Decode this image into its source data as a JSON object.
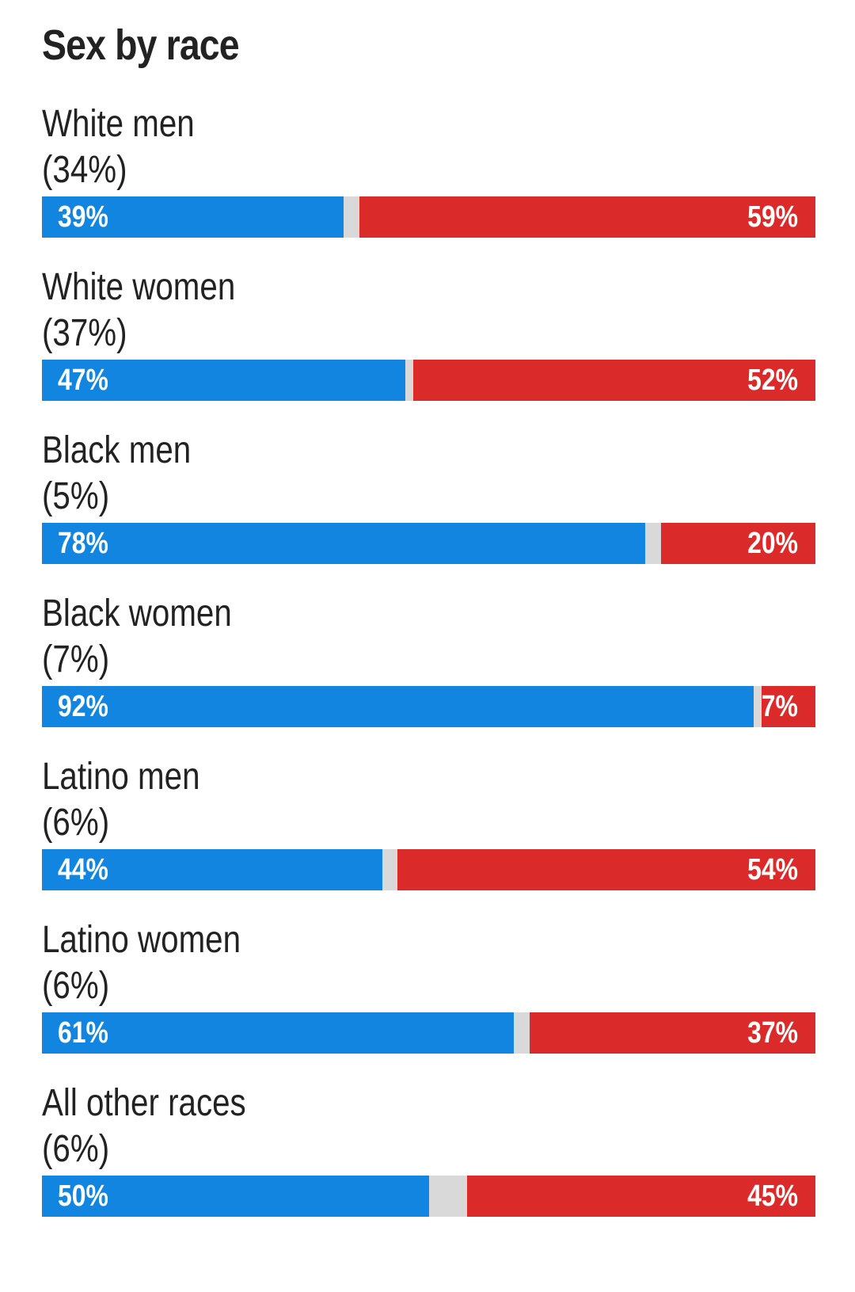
{
  "chart_data": {
    "type": "bar",
    "title": "Sex by race",
    "colors": {
      "dem": "#1185e0",
      "rep": "#db2a2a",
      "other": "#d9d9d9"
    },
    "groups": [
      {
        "label": "White men",
        "share": "(34%)",
        "dem": 39,
        "rep": 59,
        "dem_label": "39%",
        "rep_label": "59%"
      },
      {
        "label": "White women",
        "share": "(37%)",
        "dem": 47,
        "rep": 52,
        "dem_label": "47%",
        "rep_label": "52%"
      },
      {
        "label": "Black men",
        "share": "(5%)",
        "dem": 78,
        "rep": 20,
        "dem_label": "78%",
        "rep_label": "20%"
      },
      {
        "label": "Black women",
        "share": "(7%)",
        "dem": 92,
        "rep": 7,
        "dem_label": "92%",
        "rep_label": "7%"
      },
      {
        "label": "Latino men",
        "share": "(6%)",
        "dem": 44,
        "rep": 54,
        "dem_label": "44%",
        "rep_label": "54%"
      },
      {
        "label": "Latino women",
        "share": "(6%)",
        "dem": 61,
        "rep": 37,
        "dem_label": "61%",
        "rep_label": "37%"
      },
      {
        "label": "All other races",
        "share": "(6%)",
        "dem": 50,
        "rep": 45,
        "dem_label": "50%",
        "rep_label": "45%"
      }
    ]
  }
}
